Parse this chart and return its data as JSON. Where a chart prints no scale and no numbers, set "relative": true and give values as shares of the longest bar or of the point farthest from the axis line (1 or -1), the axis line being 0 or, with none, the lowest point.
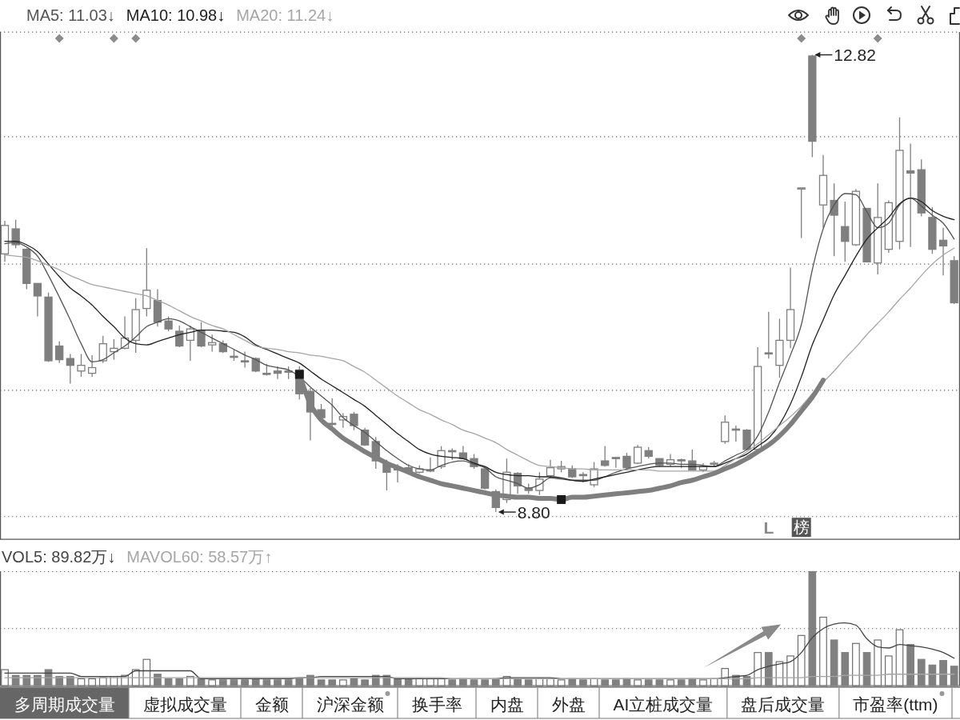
{
  "chart_data": [
    {
      "type": "candlestick",
      "categories": [
        null,
        null,
        null,
        null,
        null,
        null,
        null,
        null,
        null,
        null,
        null,
        null,
        null,
        null,
        null,
        null,
        null,
        null,
        null,
        null,
        null,
        null,
        null,
        null,
        null,
        null,
        null,
        null,
        null,
        null,
        null,
        null,
        null,
        null,
        null,
        null,
        null,
        null,
        null,
        null,
        null,
        null,
        null,
        null,
        null,
        null,
        null,
        null,
        null,
        null,
        null,
        null,
        null,
        null,
        null,
        null,
        null,
        null,
        null,
        null,
        null,
        null,
        null,
        null,
        null,
        null,
        null,
        null,
        null,
        null,
        null,
        null,
        null,
        null,
        null,
        null,
        null,
        null,
        null,
        null,
        null,
        null,
        null,
        null,
        null,
        null,
        null,
        null
      ],
      "ohlc": [
        [
          11.07,
          11.36,
          11.0,
          11.32
        ],
        [
          11.29,
          11.37,
          11.12,
          11.15
        ],
        [
          11.11,
          11.12,
          10.76,
          10.81
        ],
        [
          10.81,
          10.81,
          10.52,
          10.7
        ],
        [
          10.69,
          10.73,
          10.12,
          10.13
        ],
        [
          10.26,
          10.3,
          10.11,
          10.14
        ],
        [
          10.15,
          10.19,
          9.93,
          10.09
        ],
        [
          10.04,
          10.19,
          9.99,
          10.09
        ],
        [
          10.02,
          10.18,
          9.99,
          10.07
        ],
        [
          10.13,
          10.35,
          10.11,
          10.28
        ],
        [
          10.21,
          10.32,
          10.14,
          10.24
        ],
        [
          10.24,
          10.52,
          10.23,
          10.33
        ],
        [
          10.31,
          10.68,
          10.2,
          10.58
        ],
        [
          10.59,
          11.12,
          10.52,
          10.75
        ],
        [
          10.66,
          10.76,
          10.43,
          10.47
        ],
        [
          10.48,
          10.52,
          10.39,
          10.41
        ],
        [
          10.39,
          10.44,
          10.25,
          10.26
        ],
        [
          10.31,
          10.44,
          10.13,
          10.41
        ],
        [
          10.4,
          10.47,
          10.25,
          10.26
        ],
        [
          10.27,
          10.36,
          10.21,
          10.29
        ],
        [
          10.28,
          10.31,
          10.2,
          10.21
        ],
        [
          10.17,
          10.23,
          10.13,
          10.16
        ],
        [
          10.13,
          10.21,
          10.07,
          10.12
        ],
        [
          10.15,
          10.16,
          10.03,
          10.04
        ],
        [
          10.02,
          10.1,
          10.0,
          10.01
        ],
        [
          10.04,
          10.08,
          9.97,
          10.02
        ],
        [
          10.04,
          10.08,
          9.97,
          10.03
        ],
        [
          10.05,
          10.08,
          9.79,
          9.84
        ],
        [
          9.86,
          9.89,
          9.43,
          9.68
        ],
        [
          9.7,
          9.75,
          9.59,
          9.63
        ],
        [
          9.58,
          9.8,
          9.55,
          9.57
        ],
        [
          9.61,
          9.67,
          9.54,
          9.64
        ],
        [
          9.66,
          9.68,
          9.52,
          9.56
        ],
        [
          9.52,
          9.54,
          9.38,
          9.39
        ],
        [
          9.42,
          9.46,
          9.18,
          9.25
        ],
        [
          9.22,
          9.26,
          8.99,
          9.15
        ],
        [
          9.19,
          9.22,
          9.06,
          9.17
        ],
        [
          9.19,
          9.22,
          9.13,
          9.15
        ],
        [
          9.15,
          9.21,
          9.14,
          9.18
        ],
        [
          9.16,
          9.28,
          9.15,
          9.17
        ],
        [
          9.2,
          9.38,
          9.18,
          9.34
        ],
        [
          9.34,
          9.36,
          9.26,
          9.33
        ],
        [
          9.32,
          9.38,
          9.27,
          9.27
        ],
        [
          9.27,
          9.31,
          9.18,
          9.2
        ],
        [
          9.18,
          9.2,
          9.0,
          9.01
        ],
        [
          8.98,
          9.0,
          8.8,
          8.84
        ],
        [
          8.91,
          9.27,
          8.88,
          9.15
        ],
        [
          9.14,
          9.15,
          8.96,
          9.03
        ],
        [
          9.01,
          9.05,
          8.96,
          8.99
        ],
        [
          8.99,
          9.15,
          8.95,
          9.09
        ],
        [
          9.12,
          9.26,
          9.1,
          9.19
        ],
        [
          9.18,
          9.25,
          9.15,
          9.2
        ],
        [
          9.18,
          9.21,
          9.1,
          9.11
        ],
        [
          9.13,
          9.15,
          9.06,
          9.12
        ],
        [
          9.04,
          9.24,
          9.02,
          9.18
        ],
        [
          9.25,
          9.38,
          9.2,
          9.21
        ],
        [
          9.28,
          9.28,
          9.19,
          9.27
        ],
        [
          9.29,
          9.32,
          9.18,
          9.19
        ],
        [
          9.23,
          9.39,
          9.22,
          9.37
        ],
        [
          9.34,
          9.37,
          9.27,
          9.29
        ],
        [
          9.27,
          9.27,
          9.2,
          9.21
        ],
        [
          9.22,
          9.31,
          9.2,
          9.26
        ],
        [
          9.26,
          9.27,
          9.19,
          9.25
        ],
        [
          9.25,
          9.35,
          9.17,
          9.17
        ],
        [
          9.17,
          9.23,
          9.15,
          9.2
        ],
        [
          9.22,
          9.25,
          9.2,
          9.23
        ],
        [
          9.42,
          9.65,
          9.4,
          9.59
        ],
        [
          9.53,
          9.56,
          9.42,
          9.52
        ],
        [
          9.52,
          9.53,
          9.34,
          9.35
        ],
        [
          9.35,
          10.25,
          9.33,
          10.08
        ],
        [
          10.2,
          10.56,
          10.15,
          10.19
        ],
        [
          10.09,
          10.5,
          9.98,
          10.31
        ],
        [
          10.31,
          10.95,
          10.24,
          10.58
        ],
        [
          11.64,
          11.65,
          11.21,
          11.65
        ],
        [
          12.81,
          12.82,
          11.92,
          12.06
        ],
        [
          11.5,
          11.94,
          11.3,
          11.76
        ],
        [
          11.54,
          11.69,
          11.05,
          11.41
        ],
        [
          11.31,
          11.53,
          11.0,
          11.18
        ],
        [
          11.15,
          11.64,
          11.14,
          11.62
        ],
        [
          11.47,
          11.47,
          11.0,
          11.0
        ],
        [
          10.99,
          11.69,
          10.89,
          11.39
        ],
        [
          11.11,
          11.54,
          11.08,
          11.52
        ],
        [
          11.18,
          12.27,
          11.11,
          11.98
        ],
        [
          11.8,
          12.04,
          11.13,
          11.78
        ],
        [
          11.81,
          11.9,
          11.4,
          11.43
        ],
        [
          11.39,
          11.48,
          11.07,
          11.11
        ],
        [
          11.19,
          11.3,
          10.88,
          11.14
        ],
        [
          11.01,
          11.05,
          10.63,
          10.64
        ]
      ],
      "color": "#7f7f7f",
      "ylim": [
        8.56,
        13.02
      ],
      "yticks": [
        {
          "value": 12.1,
          "label": null
        },
        {
          "value": 10.98,
          "label": null
        },
        {
          "value": 9.87,
          "label": null
        },
        {
          "value": 8.76,
          "label": null
        }
      ],
      "grid": "y",
      "legend": "top left",
      "series": [
        {
          "name": "MA5: 11.03↓",
          "type": "line",
          "color": "#555555",
          "values": [
            11.16,
            11.17,
            11.13,
            11.05,
            10.88,
            10.69,
            10.49,
            10.28,
            10.12,
            10.14,
            10.2,
            10.26,
            10.34,
            10.43,
            10.47,
            10.5,
            10.48,
            10.43,
            10.38,
            10.33,
            10.28,
            10.23,
            10.18,
            10.14,
            10.09,
            10.07,
            10.05,
            9.99,
            9.9,
            9.82,
            9.74,
            9.63,
            9.56,
            9.5,
            9.42,
            9.34,
            9.27,
            9.21,
            9.18,
            9.17,
            9.21,
            9.24,
            9.25,
            9.22,
            9.19,
            9.11,
            9.08,
            9.05,
            9.01,
            9.04,
            9.1,
            9.09,
            9.08,
            9.08,
            9.08,
            9.11,
            9.15,
            9.18,
            9.2,
            9.22,
            9.23,
            9.23,
            9.22,
            9.22,
            9.21,
            9.2,
            9.25,
            9.3,
            9.35,
            9.47,
            9.68,
            9.94,
            10.18,
            10.45,
            10.93,
            11.29,
            11.5,
            11.6,
            11.59,
            11.44,
            11.3,
            11.34,
            11.5,
            11.56,
            11.49,
            11.41,
            11.34,
            11.2
          ]
        },
        {
          "name": "MA10: 10.98↓",
          "type": "line",
          "color": "#222222",
          "values": [
            11.18,
            11.18,
            11.15,
            11.09,
            10.98,
            10.87,
            10.77,
            10.7,
            10.62,
            10.52,
            10.43,
            10.33,
            10.28,
            10.27,
            10.3,
            10.33,
            10.36,
            10.38,
            10.4,
            10.4,
            10.39,
            10.38,
            10.34,
            10.27,
            10.23,
            10.19,
            10.15,
            10.11,
            10.04,
            9.97,
            9.91,
            9.85,
            9.79,
            9.73,
            9.65,
            9.57,
            9.49,
            9.42,
            9.35,
            9.31,
            9.29,
            9.28,
            9.27,
            9.23,
            9.2,
            9.15,
            9.13,
            9.12,
            9.12,
            9.11,
            9.11,
            9.1,
            9.08,
            9.07,
            9.09,
            9.11,
            9.13,
            9.15,
            9.17,
            9.19,
            9.2,
            9.2,
            9.2,
            9.2,
            9.2,
            9.2,
            9.23,
            9.27,
            9.31,
            9.38,
            9.45,
            9.57,
            9.75,
            9.99,
            10.27,
            10.49,
            10.71,
            10.88,
            11.05,
            11.2,
            11.3,
            11.39,
            11.51,
            11.56,
            11.53,
            11.45,
            11.4,
            11.37
          ]
        },
        {
          "name": "MA20: 11.24↓",
          "type": "line",
          "color": "#a6a6a6",
          "values": [
            11.06,
            11.05,
            11.04,
            11.01,
            10.97,
            10.93,
            10.88,
            10.84,
            10.8,
            10.78,
            10.76,
            10.74,
            10.72,
            10.7,
            10.66,
            10.62,
            10.57,
            10.52,
            10.48,
            10.44,
            10.41,
            10.36,
            10.31,
            10.26,
            10.24,
            10.23,
            10.21,
            10.2,
            10.18,
            10.17,
            10.15,
            10.13,
            10.08,
            10.03,
            9.96,
            9.89,
            9.82,
            9.76,
            9.7,
            9.66,
            9.61,
            9.57,
            9.52,
            9.49,
            9.45,
            9.41,
            9.35,
            9.3,
            9.25,
            9.21,
            9.2,
            9.19,
            9.18,
            9.18,
            9.17,
            9.17,
            9.17,
            9.17,
            9.17,
            9.17,
            9.16,
            9.16,
            9.16,
            9.16,
            9.16,
            9.16,
            9.21,
            9.27,
            9.33,
            9.4,
            9.48,
            9.56,
            9.64,
            9.73,
            9.84,
            9.94,
            10.04,
            10.15,
            10.25,
            10.36,
            10.46,
            10.56,
            10.67,
            10.77,
            10.88,
            10.98,
            11.06,
            11.12
          ]
        },
        {
          "type": "line",
          "color": "#7f7f7f",
          "values": [
            null,
            null,
            null,
            null,
            null,
            null,
            null,
            null,
            null,
            null,
            null,
            null,
            null,
            null,
            null,
            null,
            null,
            null,
            null,
            null,
            null,
            null,
            null,
            null,
            null,
            null,
            null,
            10.01,
            9.75,
            9.61,
            9.53,
            9.45,
            9.39,
            9.33,
            9.28,
            9.23,
            9.19,
            9.15,
            9.11,
            9.08,
            9.05,
            9.03,
            9.01,
            8.99,
            8.97,
            8.95,
            8.94,
            8.93,
            8.93,
            8.92,
            8.92,
            8.91,
            8.93,
            8.93,
            8.94,
            8.95,
            8.96,
            8.97,
            8.98,
            8.99,
            9.01,
            9.03,
            9.06,
            9.08,
            9.11,
            9.14,
            9.18,
            9.22,
            9.27,
            9.33,
            9.39,
            9.47,
            9.57,
            9.69,
            9.81,
            9.96,
            null,
            null,
            null,
            null,
            null,
            null,
            null,
            null,
            null,
            null,
            null,
            null
          ]
        },
        {
          "type": "scatter",
          "color": "#1a1a1a",
          "marker": "square",
          "values": [
            null,
            null,
            null,
            null,
            null,
            null,
            null,
            null,
            null,
            null,
            null,
            null,
            null,
            null,
            null,
            null,
            null,
            null,
            null,
            null,
            null,
            null,
            null,
            null,
            null,
            null,
            null,
            10.01,
            null,
            null,
            null,
            null,
            null,
            null,
            null,
            null,
            null,
            null,
            null,
            null,
            null,
            null,
            null,
            null,
            null,
            null,
            null,
            null,
            null,
            null,
            null,
            8.91,
            null,
            null,
            null,
            null,
            null,
            null,
            null,
            null,
            null,
            null,
            null,
            null,
            null,
            null,
            null,
            null,
            null,
            null,
            null,
            null,
            null,
            null,
            null,
            null,
            null,
            null,
            null,
            null,
            null,
            null,
            null,
            null,
            null,
            null,
            null,
            null
          ]
        }
      ],
      "annotations": [
        "12.82",
        "8.80",
        "L",
        "榜"
      ]
    },
    {
      "type": "bar",
      "categories": [
        null,
        null,
        null,
        null,
        null,
        null,
        null,
        null,
        null,
        null,
        null,
        null,
        null,
        null,
        null,
        null,
        null,
        null,
        null,
        null,
        null,
        null,
        null,
        null,
        null,
        null,
        null,
        null,
        null,
        null,
        null,
        null,
        null,
        null,
        null,
        null,
        null,
        null,
        null,
        null,
        null,
        null,
        null,
        null,
        null,
        null,
        null,
        null,
        null,
        null,
        null,
        null,
        null,
        null,
        null,
        null,
        null,
        null,
        null,
        null,
        null,
        null,
        null,
        null,
        null,
        null,
        null,
        null,
        null,
        null,
        null,
        null,
        null,
        null,
        null,
        null,
        null,
        null,
        null,
        null,
        null,
        null,
        null,
        null,
        null,
        null,
        null,
        null
      ],
      "relative": true,
      "ref_lines": [
        {
          "axis": "y",
          "value": 0.5,
          "color": "#6a6a6a",
          "line_style": "dotted"
        }
      ],
      "legend": "top left",
      "series": [
        {
          "type": "bar",
          "values": [
            0.14,
            0.09,
            0.09,
            0.09,
            0.14,
            0.08,
            0.08,
            0.06,
            0.06,
            0.07,
            0.08,
            0.09,
            0.14,
            0.23,
            0.1,
            0.06,
            0.06,
            0.08,
            0.06,
            0.05,
            0.05,
            0.05,
            0.05,
            0.06,
            0.05,
            0.05,
            0.05,
            0.06,
            0.09,
            0.05,
            0.05,
            0.05,
            0.06,
            0.05,
            0.09,
            0.09,
            0.06,
            0.06,
            0.06,
            0.06,
            0.06,
            0.05,
            0.06,
            0.05,
            0.05,
            0.06,
            0.08,
            0.06,
            0.05,
            0.06,
            0.06,
            0.05,
            0.06,
            0.05,
            0.06,
            0.05,
            0.05,
            0.06,
            0.05,
            0.05,
            0.05,
            0.05,
            0.05,
            0.06,
            0.05,
            0.06,
            0.15,
            0.09,
            0.08,
            0.29,
            0.29,
            0.21,
            0.26,
            0.44,
            1,
            0.6,
            0.4,
            0.29,
            0.37,
            0.29,
            0.4,
            0.26,
            0.49,
            0.36,
            0.23,
            0.18,
            0.22,
            0.17
          ],
          "colors": [
            "#ffffff",
            "#808080",
            "#808080",
            "#808080",
            "#808080",
            "#808080",
            "#808080",
            "#ffffff",
            "#ffffff",
            "#ffffff",
            "#ffffff",
            "#ffffff",
            "#ffffff",
            "#ffffff",
            "#808080",
            "#808080",
            "#808080",
            "#ffffff",
            "#808080",
            "#ffffff",
            "#808080",
            "#808080",
            "#808080",
            "#808080",
            "#808080",
            "#808080",
            "#808080",
            "#808080",
            "#808080",
            "#808080",
            "#808080",
            "#ffffff",
            "#808080",
            "#808080",
            "#808080",
            "#808080",
            "#808080",
            "#808080",
            "#ffffff",
            "#ffffff",
            "#ffffff",
            "#808080",
            "#808080",
            "#808080",
            "#808080",
            "#808080",
            "#ffffff",
            "#808080",
            "#808080",
            "#ffffff",
            "#ffffff",
            "#ffffff",
            "#808080",
            "#808080",
            "#ffffff",
            "#808080",
            "#808080",
            "#808080",
            "#ffffff",
            "#808080",
            "#808080",
            "#ffffff",
            "#808080",
            "#808080",
            "#ffffff",
            "#ffffff",
            "#ffffff",
            "#808080",
            "#808080",
            "#ffffff",
            "#808080",
            "#ffffff",
            "#ffffff",
            "#ffffff",
            "#808080",
            "#ffffff",
            "#808080",
            "#808080",
            "#ffffff",
            "#808080",
            "#ffffff",
            "#ffffff",
            "#ffffff",
            "#808080",
            "#808080",
            "#808080",
            "#808080",
            "#808080"
          ]
        },
        {
          "type": "line",
          "name": "VOL5: 89.82万↓",
          "color": "#444444",
          "values": [
            0.11,
            0.11,
            0.11,
            0.11,
            0.11,
            0.11,
            0.11,
            0.08,
            0.08,
            0.08,
            0.08,
            0.08,
            0.13,
            0.13,
            0.13,
            0.13,
            0.13,
            0.13,
            0.06,
            0.06,
            0.06,
            0.06,
            0.06,
            0.06,
            0.06,
            0.06,
            0.06,
            0.07,
            0.07,
            0.08,
            0.08,
            0.08,
            0.08,
            0.08,
            0.08,
            0.08,
            0.06,
            0.06,
            0.06,
            0.06,
            0.06,
            0.06,
            0.06,
            0.06,
            0.06,
            0.06,
            0.07,
            0.07,
            0.07,
            0.07,
            0.07,
            0.06,
            0.06,
            0.06,
            0.06,
            0.06,
            0.06,
            0.06,
            0.06,
            0.06,
            0.06,
            0.06,
            0.06,
            0.06,
            0.06,
            0.06,
            0.07,
            0.08,
            0.09,
            0.14,
            0.17,
            0.19,
            0.21,
            0.29,
            0.42,
            0.5,
            0.54,
            0.55,
            0.53,
            0.41,
            0.34,
            0.33,
            0.36,
            0.35,
            0.34,
            0.32,
            0.29,
            0.24
          ]
        },
        {
          "type": "line",
          "name": "MAVOL60: 58.57万↑",
          "color": "#a6a6a6",
          "values": [
            0.07,
            0.07,
            0.07,
            0.07,
            0.07,
            0.07,
            0.07,
            0.07,
            0.07,
            0.07,
            0.07,
            0.07,
            0.07,
            0.07,
            0.07,
            0.07,
            0.07,
            0.07,
            0.07,
            0.07,
            0.07,
            0.07,
            0.07,
            0.07,
            0.07,
            0.07,
            0.07,
            0.07,
            0.07,
            0.07,
            0.07,
            0.07,
            0.07,
            0.07,
            0.07,
            0.07,
            0.07,
            0.07,
            0.07,
            0.07,
            0.07,
            0.06,
            0.06,
            0.06,
            0.06,
            0.06,
            0.06,
            0.06,
            0.06,
            0.06,
            0.06,
            0.06,
            0.06,
            0.06,
            0.06,
            0.06,
            0.06,
            0.06,
            0.06,
            0.06,
            0.06,
            0.06,
            0.06,
            0.06,
            0.06,
            0.06,
            0.06,
            0.06,
            0.06,
            0.07,
            0.07,
            0.07,
            0.07,
            0.07,
            0.08,
            0.08,
            0.08,
            0.09,
            0.09,
            0.09,
            0.09,
            0.1,
            0.1,
            0.1,
            0.1,
            0.1,
            0.1,
            0.1
          ]
        }
      ]
    },
    {
      "type": "other",
      "annotations": [
        "多周期成交量",
        "虚拟成交量",
        "金额",
        "沪深金额",
        "换手率",
        "内盘",
        "外盘",
        "AI立桩成交量",
        "盘后成交量",
        "市盈率(ttm)"
      ]
    }
  ]
}
